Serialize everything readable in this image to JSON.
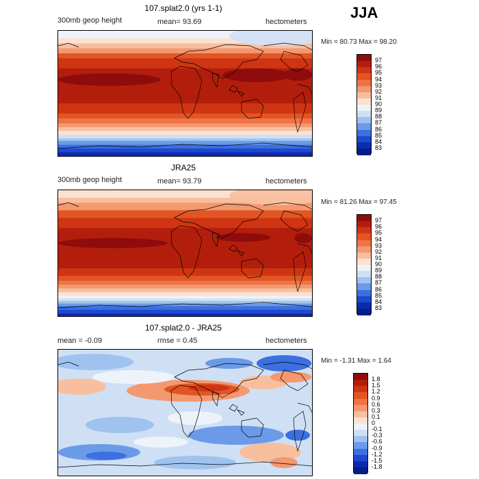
{
  "season": "JJA",
  "panels": [
    {
      "title": "107.splat2.0 (yrs 1-1)",
      "left_sub": "300mb geop height",
      "mid_sub": "mean=  93.69",
      "units": "hectometers",
      "minmax": "Min =  80.73 Max =  98.20",
      "field": "model",
      "colorbar": {
        "labels": [
          "97",
          "96",
          "95",
          "94",
          "93",
          "92",
          "91",
          "90",
          "89",
          "88",
          "87",
          "86",
          "85",
          "84",
          "83"
        ],
        "colors": [
          "#8e0c0c",
          "#b31e0c",
          "#cf3512",
          "#e25525",
          "#ee7448",
          "#f4986f",
          "#f8bf9f",
          "#fbe1d2",
          "#eef3fb",
          "#cfe0f5",
          "#9fc3ee",
          "#6b9be8",
          "#3c6fe0",
          "#1f48cf",
          "#0b2ab0",
          "#061c88"
        ]
      }
    },
    {
      "title": "JRA25",
      "left_sub": "300mb geop height",
      "mid_sub": "mean=  93.79",
      "units": "hectometers",
      "minmax": "Min =  81.26 Max =  97.45",
      "field": "obs",
      "colorbar": {
        "labels": [
          "97",
          "96",
          "95",
          "94",
          "93",
          "92",
          "91",
          "90",
          "89",
          "88",
          "87",
          "86",
          "85",
          "84",
          "83"
        ],
        "colors": [
          "#8e0c0c",
          "#b31e0c",
          "#cf3512",
          "#e25525",
          "#ee7448",
          "#f4986f",
          "#f8bf9f",
          "#fbe1d2",
          "#eef3fb",
          "#cfe0f5",
          "#9fc3ee",
          "#6b9be8",
          "#3c6fe0",
          "#1f48cf",
          "#0b2ab0",
          "#061c88"
        ]
      }
    },
    {
      "title": "107.splat2.0 - JRA25",
      "left_sub": "mean =   -0.09",
      "mid_sub": "rmse =    0.45",
      "units": "hectometers",
      "minmax": "Min =  -1.31 Max =   1.64",
      "field": "diff",
      "colorbar": {
        "labels": [
          "1.8",
          "1.5",
          "1.2",
          "0.9",
          "0.6",
          "0.3",
          "0.1",
          "0",
          "-0.1",
          "-0.3",
          "-0.6",
          "-0.9",
          "-1.2",
          "-1.5",
          "-1.8"
        ],
        "colors": [
          "#8e0c0c",
          "#b31e0c",
          "#cf3512",
          "#e25525",
          "#ee7448",
          "#f4986f",
          "#f8bf9f",
          "#fbe1d2",
          "#eef3fb",
          "#cfe0f5",
          "#9fc3ee",
          "#6b9be8",
          "#3c6fe0",
          "#1f48cf",
          "#0b2ab0",
          "#061c88"
        ]
      }
    }
  ]
}
